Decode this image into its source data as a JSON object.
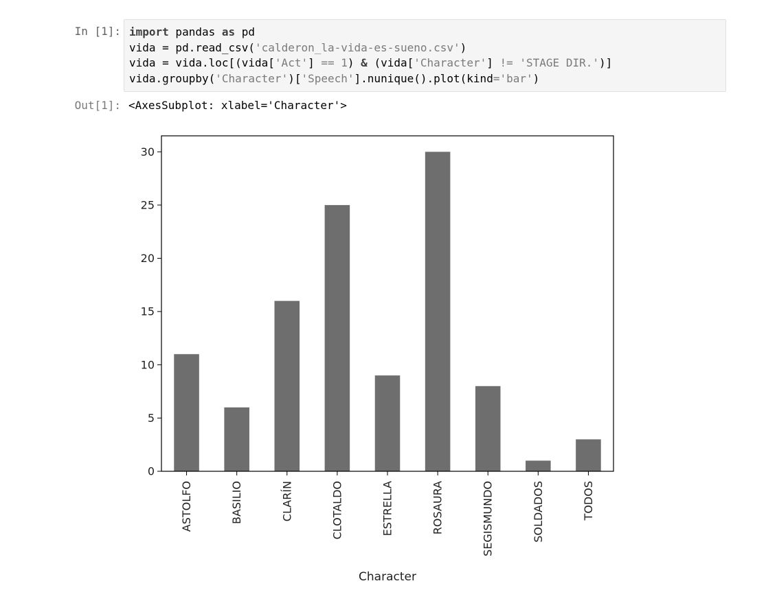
{
  "cell_in": {
    "prompt": "In [1]:",
    "code_lines": [
      [
        {
          "t": "import",
          "c": "kw"
        },
        {
          "t": " pandas ",
          "c": ""
        },
        {
          "t": "as",
          "c": "kw"
        },
        {
          "t": " pd",
          "c": ""
        }
      ],
      [
        {
          "t": "vida = pd.read_csv(",
          "c": ""
        },
        {
          "t": "'calderon_la-vida-es-sueno.csv'",
          "c": "str"
        },
        {
          "t": ")",
          "c": ""
        }
      ],
      [
        {
          "t": "vida = vida.loc[(vida[",
          "c": ""
        },
        {
          "t": "'Act'",
          "c": "str"
        },
        {
          "t": "] ",
          "c": ""
        },
        {
          "t": "==",
          "c": "op"
        },
        {
          "t": " ",
          "c": ""
        },
        {
          "t": "1",
          "c": "num"
        },
        {
          "t": ") ",
          "c": ""
        },
        {
          "t": "&",
          "c": "kw"
        },
        {
          "t": " (vida[",
          "c": ""
        },
        {
          "t": "'Character'",
          "c": "str"
        },
        {
          "t": "] ",
          "c": ""
        },
        {
          "t": "!=",
          "c": "op"
        },
        {
          "t": " ",
          "c": ""
        },
        {
          "t": "'STAGE DIR.'",
          "c": "str"
        },
        {
          "t": ")]",
          "c": ""
        }
      ],
      [
        {
          "t": "vida.groupby(",
          "c": ""
        },
        {
          "t": "'Character'",
          "c": "str"
        },
        {
          "t": ")[",
          "c": ""
        },
        {
          "t": "'Speech'",
          "c": "str"
        },
        {
          "t": "].nunique().plot(kind",
          "c": ""
        },
        {
          "t": "=",
          "c": "op"
        },
        {
          "t": "'bar'",
          "c": "str"
        },
        {
          "t": ")",
          "c": ""
        }
      ]
    ]
  },
  "cell_out": {
    "prompt": "Out[1]:",
    "text": "<AxesSubplot: xlabel='Character'>"
  },
  "chart_data": {
    "type": "bar",
    "categories": [
      "ASTOLFO",
      "BASILIO",
      "CLARÍN",
      "CLOTALDO",
      "ESTRELLA",
      "ROSAURA",
      "SEGISMUNDO",
      "SOLDADOS",
      "TODOS"
    ],
    "values": [
      11,
      6,
      16,
      25,
      9,
      30,
      8,
      1,
      3
    ],
    "title": "",
    "xlabel": "Character",
    "ylabel": "",
    "ylim": [
      0,
      31.5
    ],
    "yticks": [
      0,
      5,
      10,
      15,
      20,
      25,
      30
    ],
    "bar_color": "#6e6e6e",
    "grid": false,
    "legend": "none"
  }
}
